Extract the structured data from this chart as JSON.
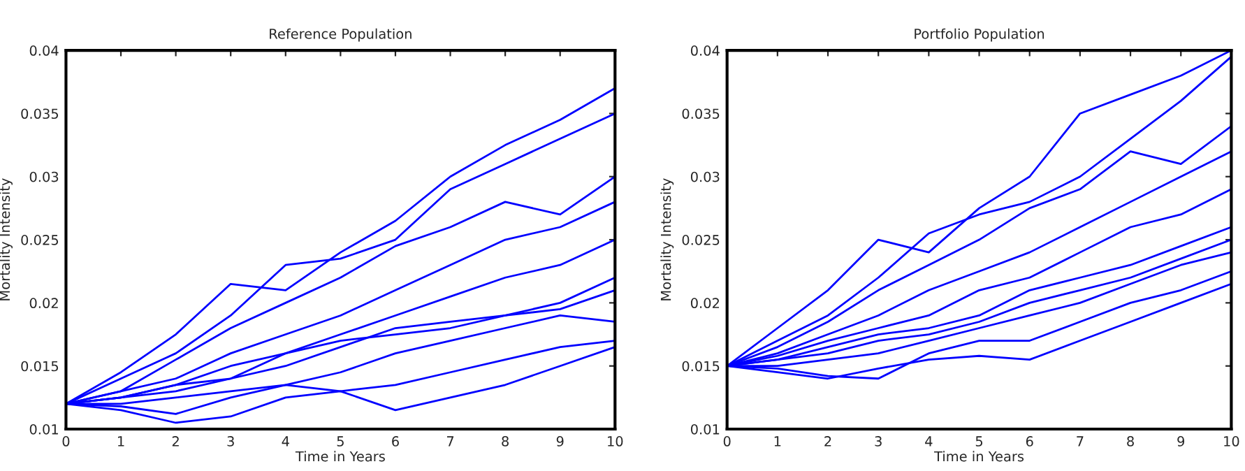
{
  "chart_data": [
    {
      "type": "line",
      "title": "Reference Population",
      "xlabel": "Time in Years",
      "ylabel": "Mortality Intensity",
      "x": [
        0,
        1,
        2,
        3,
        4,
        5,
        6,
        7,
        8,
        9,
        10
      ],
      "xlim": [
        0,
        10
      ],
      "xticks": [
        0,
        1,
        2,
        3,
        4,
        5,
        6,
        7,
        8,
        9,
        10
      ],
      "ylim": [
        0.01,
        0.04
      ],
      "yticks": [
        0.01,
        0.015,
        0.02,
        0.025,
        0.03,
        0.035,
        0.04
      ],
      "grid": false,
      "marker": "none",
      "line_style": "solid",
      "series": [
        {
          "color": "#0000ff",
          "values": [
            0.012,
            0.0145,
            0.0175,
            0.0215,
            0.021,
            0.024,
            0.0265,
            0.03,
            0.0325,
            0.0345,
            0.037
          ]
        },
        {
          "color": "#0000ff",
          "values": [
            0.012,
            0.014,
            0.016,
            0.019,
            0.023,
            0.0235,
            0.025,
            0.029,
            0.031,
            0.033,
            0.035
          ]
        },
        {
          "color": "#0000ff",
          "values": [
            0.012,
            0.013,
            0.0155,
            0.018,
            0.02,
            0.022,
            0.0245,
            0.026,
            0.028,
            0.027,
            0.03
          ]
        },
        {
          "color": "#0000ff",
          "values": [
            0.012,
            0.013,
            0.014,
            0.016,
            0.0175,
            0.019,
            0.021,
            0.023,
            0.025,
            0.026,
            0.028
          ]
        },
        {
          "color": "#0000ff",
          "values": [
            0.012,
            0.0125,
            0.0135,
            0.015,
            0.016,
            0.0175,
            0.019,
            0.0205,
            0.022,
            0.023,
            0.025
          ]
        },
        {
          "color": "#0000ff",
          "values": [
            0.012,
            0.0125,
            0.013,
            0.014,
            0.015,
            0.0165,
            0.018,
            0.0185,
            0.019,
            0.02,
            0.022
          ]
        },
        {
          "color": "#0000ff",
          "values": [
            0.012,
            0.0125,
            0.0135,
            0.014,
            0.016,
            0.017,
            0.0175,
            0.018,
            0.019,
            0.0195,
            0.021
          ]
        },
        {
          "color": "#0000ff",
          "values": [
            0.012,
            0.012,
            0.0125,
            0.013,
            0.0135,
            0.0145,
            0.016,
            0.017,
            0.018,
            0.019,
            0.0185
          ]
        },
        {
          "color": "#0000ff",
          "values": [
            0.012,
            0.0118,
            0.0112,
            0.0125,
            0.0135,
            0.013,
            0.0135,
            0.0145,
            0.0155,
            0.0165,
            0.017
          ]
        },
        {
          "color": "#0000ff",
          "values": [
            0.012,
            0.0115,
            0.0105,
            0.011,
            0.0125,
            0.013,
            0.0115,
            0.0125,
            0.0135,
            0.015,
            0.0165
          ]
        }
      ]
    },
    {
      "type": "line",
      "title": "Portfolio Population",
      "xlabel": "Time in Years",
      "ylabel": "Mortality Intensity",
      "x": [
        0,
        1,
        2,
        3,
        4,
        5,
        6,
        7,
        8,
        9,
        10
      ],
      "xlim": [
        0,
        10
      ],
      "xticks": [
        0,
        1,
        2,
        3,
        4,
        5,
        6,
        7,
        8,
        9,
        10
      ],
      "ylim": [
        0.01,
        0.04
      ],
      "yticks": [
        0.01,
        0.015,
        0.02,
        0.025,
        0.03,
        0.035,
        0.04
      ],
      "grid": false,
      "marker": "none",
      "line_style": "solid",
      "series": [
        {
          "color": "#0000ff",
          "values": [
            0.015,
            0.018,
            0.021,
            0.025,
            0.024,
            0.0275,
            0.03,
            0.035,
            0.0365,
            0.038,
            0.04
          ]
        },
        {
          "color": "#0000ff",
          "values": [
            0.015,
            0.017,
            0.019,
            0.022,
            0.0255,
            0.027,
            0.028,
            0.03,
            0.033,
            0.036,
            0.0395
          ]
        },
        {
          "color": "#0000ff",
          "values": [
            0.015,
            0.0165,
            0.0185,
            0.021,
            0.023,
            0.025,
            0.0275,
            0.029,
            0.032,
            0.031,
            0.034
          ]
        },
        {
          "color": "#0000ff",
          "values": [
            0.015,
            0.016,
            0.0175,
            0.019,
            0.021,
            0.0225,
            0.024,
            0.026,
            0.028,
            0.03,
            0.032
          ]
        },
        {
          "color": "#0000ff",
          "values": [
            0.015,
            0.0158,
            0.017,
            0.018,
            0.019,
            0.021,
            0.022,
            0.024,
            0.026,
            0.027,
            0.029
          ]
        },
        {
          "color": "#0000ff",
          "values": [
            0.015,
            0.0155,
            0.0165,
            0.0175,
            0.018,
            0.019,
            0.021,
            0.022,
            0.023,
            0.0245,
            0.026
          ]
        },
        {
          "color": "#0000ff",
          "values": [
            0.015,
            0.0155,
            0.016,
            0.017,
            0.0175,
            0.0185,
            0.02,
            0.021,
            0.022,
            0.0235,
            0.025
          ]
        },
        {
          "color": "#0000ff",
          "values": [
            0.015,
            0.015,
            0.0155,
            0.016,
            0.017,
            0.018,
            0.019,
            0.02,
            0.0215,
            0.023,
            0.024
          ]
        },
        {
          "color": "#0000ff",
          "values": [
            0.015,
            0.0148,
            0.0142,
            0.014,
            0.016,
            0.017,
            0.017,
            0.0185,
            0.02,
            0.021,
            0.0225
          ]
        },
        {
          "color": "#0000ff",
          "values": [
            0.015,
            0.0145,
            0.014,
            0.0148,
            0.0155,
            0.0158,
            0.0155,
            0.017,
            0.0185,
            0.02,
            0.0215
          ]
        }
      ]
    }
  ]
}
